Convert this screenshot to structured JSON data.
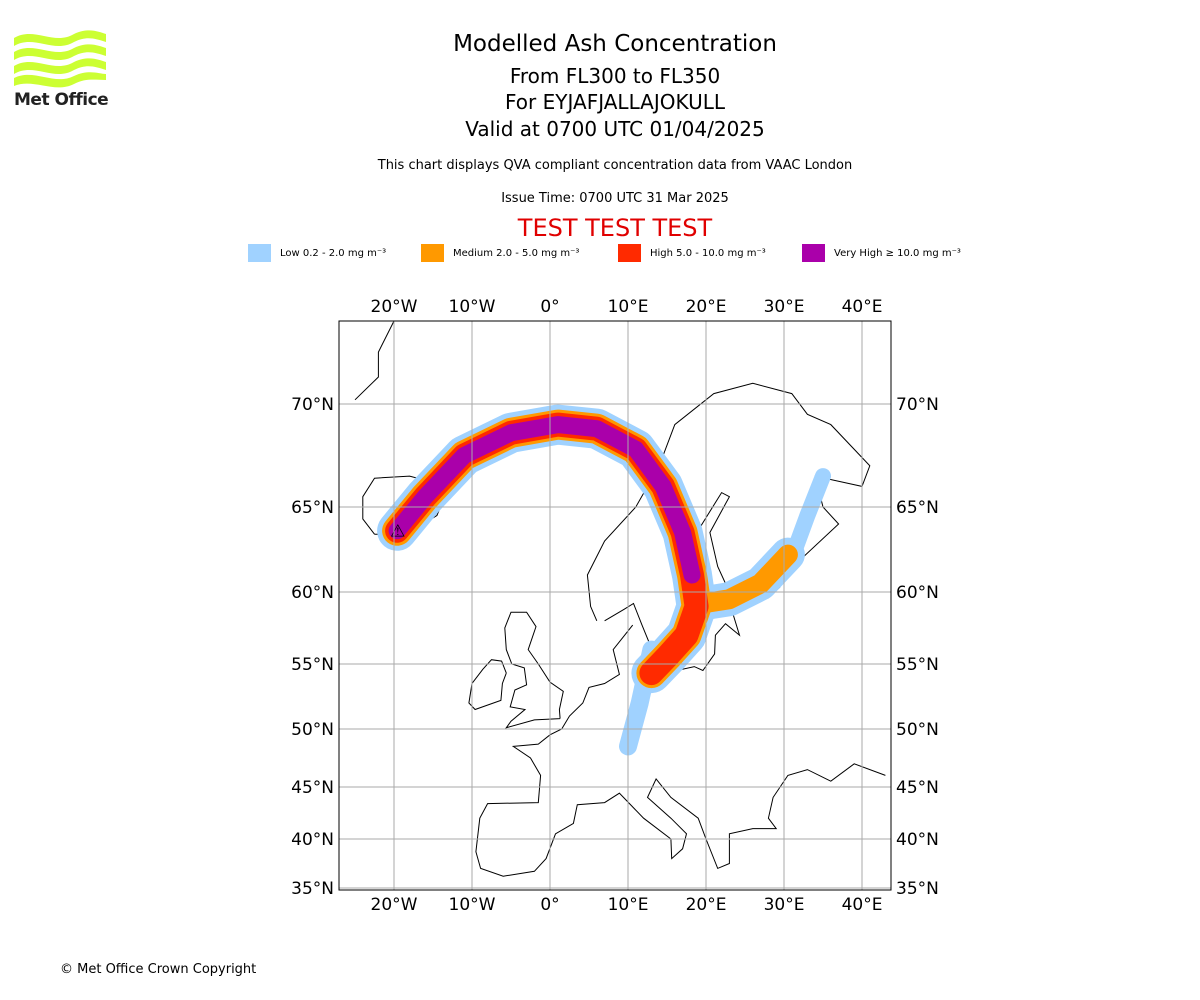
{
  "logo": {
    "text": "Met Office",
    "color": "#ccff33"
  },
  "title": {
    "line1": "Modelled Ash Concentration",
    "line2": "From FL300 to FL350",
    "line3": "For EYJAFJALLAJOKULL",
    "line4": "Valid at 0700 UTC 01/04/2025"
  },
  "subtitle": "This chart displays QVA compliant concentration data from VAAC London",
  "issue_time": "Issue Time: 0700 UTC 31 Mar 2025",
  "test_banner": {
    "text": "TEST TEST TEST",
    "color": "#e00000"
  },
  "legend": [
    {
      "label": "Low 0.2 - 2.0 mg m⁻³",
      "color": "#a0d2ff"
    },
    {
      "label": "Medium 2.0 - 5.0 mg m⁻³",
      "color": "#ff9900"
    },
    {
      "label": "High 5.0 - 10.0 mg m⁻³",
      "color": "#ff2a00"
    },
    {
      "label": "Very High ≥ 10.0 mg m⁻³",
      "color": "#aa00aa"
    }
  ],
  "map": {
    "lon_ticks": [
      "20°W",
      "10°W",
      "0°",
      "10°E",
      "20°E",
      "30°E",
      "40°E"
    ],
    "lon_values": [
      -20,
      -10,
      0,
      10,
      20,
      30,
      40
    ],
    "lat_ticks": [
      "70°N",
      "65°N",
      "60°N",
      "55°N",
      "50°N",
      "45°N",
      "40°N",
      "35°N"
    ],
    "lat_values": [
      70,
      65,
      60,
      55,
      50,
      45,
      40,
      35
    ],
    "extent": {
      "lon": [
        -27,
        43.5
      ],
      "lat": [
        35,
        74
      ]
    },
    "volcano": {
      "lat": 63.63,
      "lon": -19.6
    },
    "plume": {
      "main_track": [
        [
          63.6,
          -19.6
        ],
        [
          65.5,
          -16
        ],
        [
          67.5,
          -11
        ],
        [
          68.6,
          -5
        ],
        [
          69.0,
          1
        ],
        [
          68.8,
          6
        ],
        [
          67.8,
          11
        ],
        [
          66,
          14.5
        ],
        [
          63.5,
          17
        ],
        [
          61,
          18.2
        ],
        [
          59,
          18.8
        ],
        [
          57,
          17.5
        ],
        [
          55.5,
          15
        ],
        [
          54.3,
          13
        ]
      ],
      "east_branch": [
        [
          59.2,
          19.5
        ],
        [
          59.5,
          23
        ],
        [
          60.5,
          27
        ],
        [
          62.2,
          30.5
        ]
      ],
      "low_north": [
        [
          62,
          31
        ],
        [
          64.5,
          33
        ],
        [
          66.5,
          35
        ]
      ],
      "low_south": [
        [
          56,
          13
        ],
        [
          52,
          11.5
        ],
        [
          48.5,
          10
        ]
      ]
    }
  },
  "copyright": "© Met Office Crown Copyright"
}
